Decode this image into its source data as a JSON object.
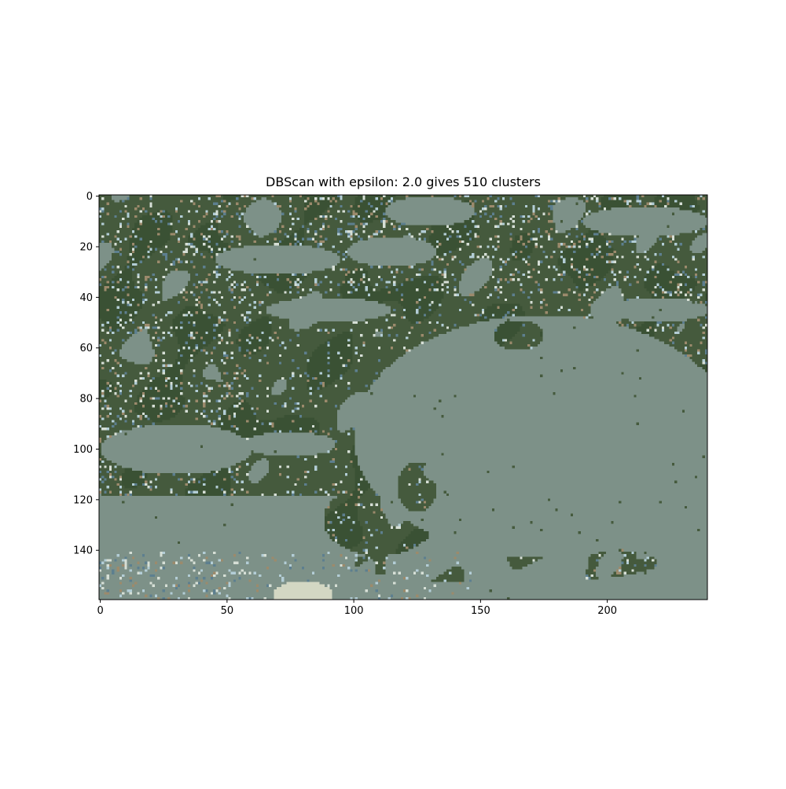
{
  "chart_data": {
    "type": "heatmap",
    "title": "DBScan with epsilon: 2.0 gives 510 clusters",
    "xlabel": "",
    "ylabel": "",
    "image_width": 240,
    "image_height": 160,
    "xlim": [
      -0.5,
      239.5
    ],
    "ylim": [
      159.5,
      -0.5
    ],
    "x_ticks": [
      0,
      50,
      100,
      150,
      200
    ],
    "y_ticks": [
      0,
      20,
      40,
      60,
      80,
      100,
      120,
      140
    ],
    "grid": false,
    "colors": {
      "light_cluster": "#7d9188",
      "dark_cluster": "#455a3d",
      "darker_cluster": "#3a5134",
      "speckle_light_blue": "#b3cdd6",
      "speckle_pale": "#d6dfd6",
      "speckle_tan": "#9c8a6c",
      "speckle_steel": "#5d7f8f",
      "sand": "#d3d7c3"
    }
  }
}
